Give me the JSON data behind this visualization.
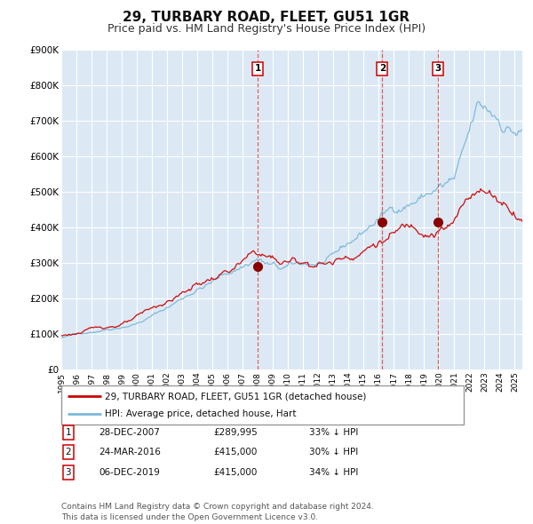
{
  "title": "29, TURBARY ROAD, FLEET, GU51 1GR",
  "subtitle": "Price paid vs. HM Land Registry's House Price Index (HPI)",
  "title_fontsize": 11,
  "subtitle_fontsize": 9,
  "background_color": "#ffffff",
  "plot_bg_color": "#dce9f5",
  "grid_color": "#ffffff",
  "y_min": 0,
  "y_max": 900000,
  "y_ticks": [
    0,
    100000,
    200000,
    300000,
    400000,
    500000,
    600000,
    700000,
    800000,
    900000
  ],
  "y_tick_labels": [
    "£0",
    "£100K",
    "£200K",
    "£300K",
    "£400K",
    "£500K",
    "£600K",
    "£700K",
    "£800K",
    "£900K"
  ],
  "hpi_color": "#7ab8d9",
  "price_color": "#cc0000",
  "dashed_line_color": "#dd4444",
  "sale_marker_color": "#880000",
  "sale1_date": 2007.99,
  "sale1_price": 289995,
  "sale2_date": 2016.23,
  "sale2_price": 415000,
  "sale3_date": 2019.93,
  "sale3_price": 415000,
  "legend_label1": "29, TURBARY ROAD, FLEET, GU51 1GR (detached house)",
  "legend_label2": "HPI: Average price, detached house, Hart",
  "table_rows": [
    {
      "num": "1",
      "date": "28-DEC-2007",
      "price": "£289,995",
      "pct": "33% ↓ HPI"
    },
    {
      "num": "2",
      "date": "24-MAR-2016",
      "price": "£415,000",
      "pct": "30% ↓ HPI"
    },
    {
      "num": "3",
      "date": "06-DEC-2019",
      "price": "£415,000",
      "pct": "34% ↓ HPI"
    }
  ],
  "footnote": "Contains HM Land Registry data © Crown copyright and database right 2024.\nThis data is licensed under the Open Government Licence v3.0."
}
